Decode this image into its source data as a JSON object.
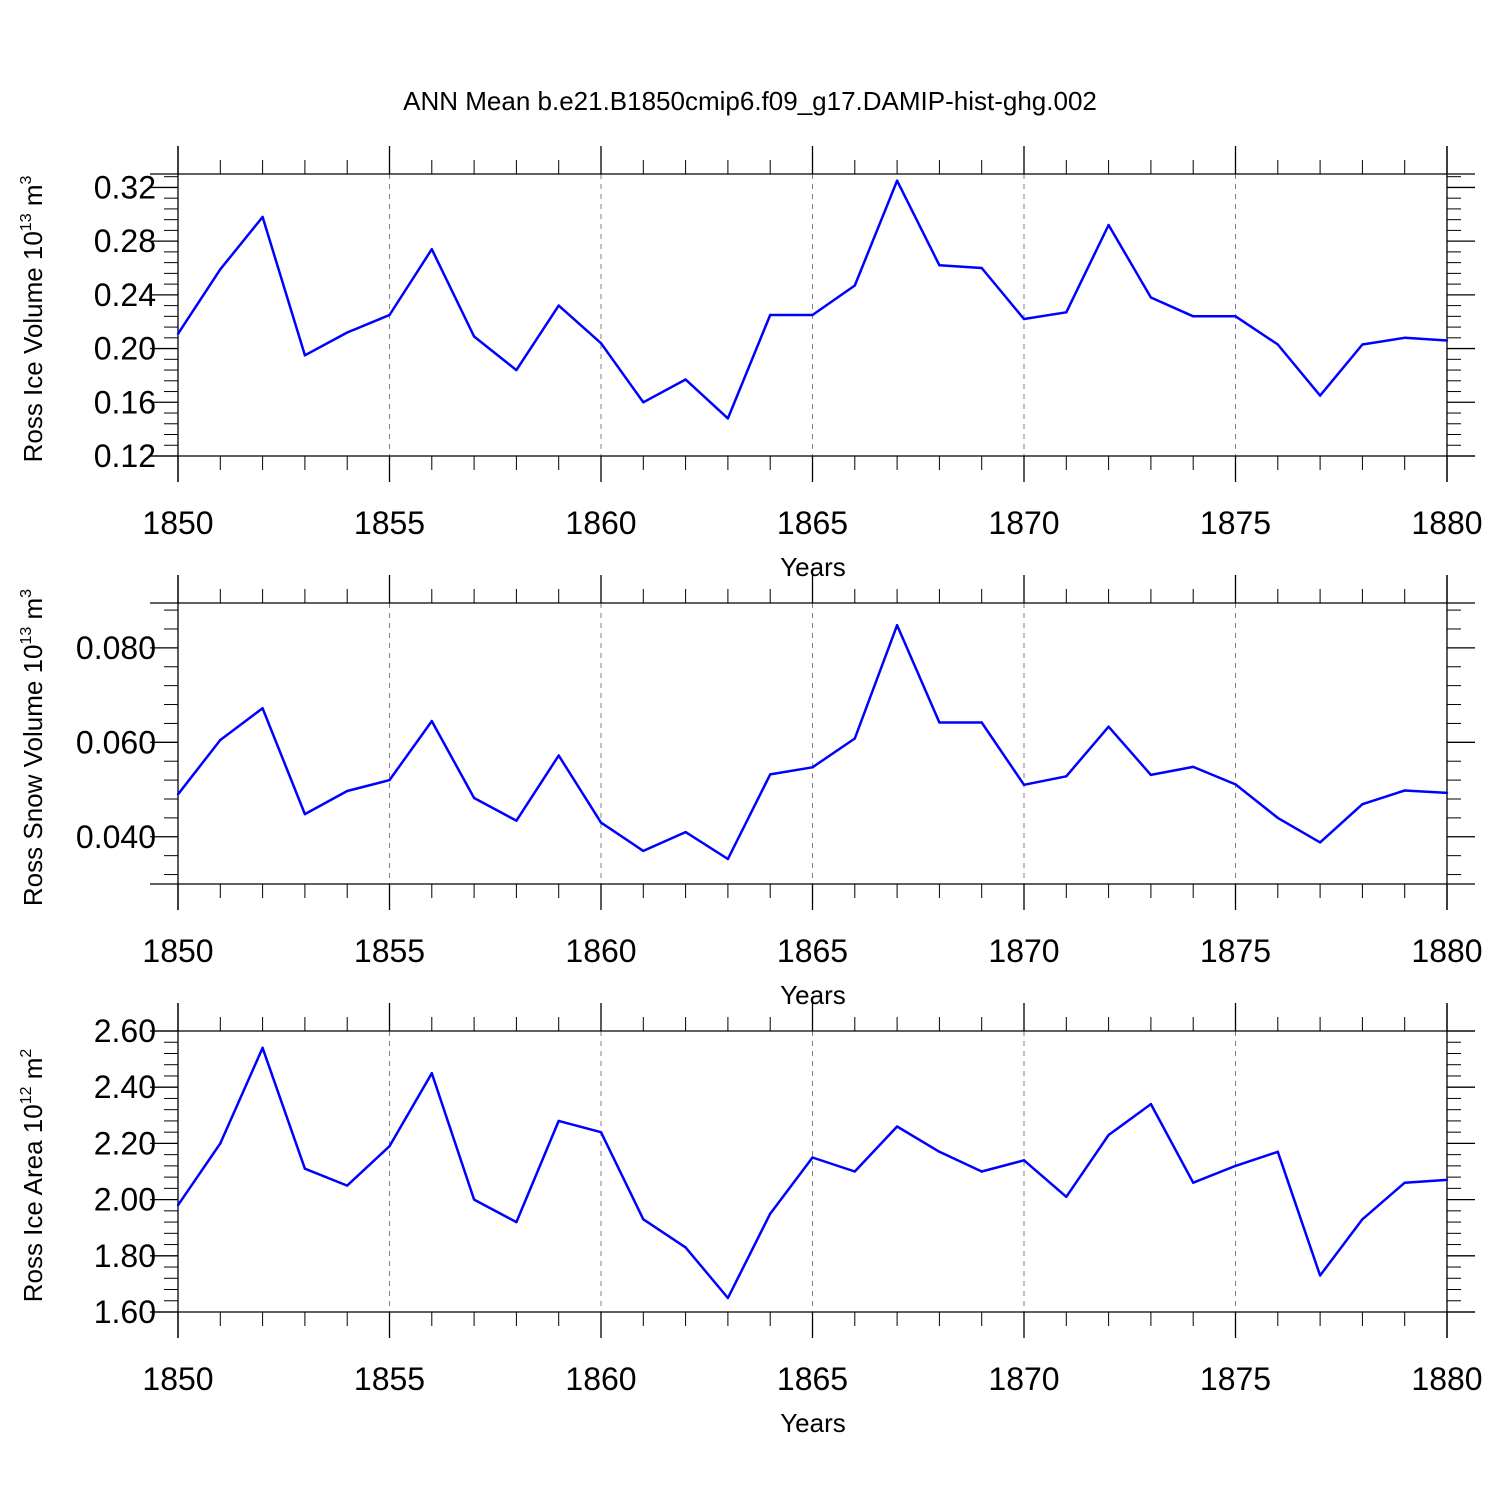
{
  "title": "ANN Mean b.e21.B1850cmip6.f09_g17.DAMIP-hist-ghg.002",
  "colors": {
    "line": "#0000ff",
    "axis": "#000000",
    "grid": "#808080"
  },
  "chart_data": [
    {
      "type": "line",
      "ylabel": {
        "pre": "Ross Ice Volume 10",
        "sup": "13",
        "mid": " m",
        "sup2": "3"
      },
      "xlabel": "Years",
      "xlim": [
        1850,
        1880
      ],
      "ylim": [
        0.12,
        0.33
      ],
      "xticks": [
        1850,
        1855,
        1860,
        1865,
        1870,
        1875,
        1880
      ],
      "yticks": [
        0.12,
        0.16,
        0.2,
        0.24,
        0.28,
        0.32
      ],
      "ytick_labels": [
        "0.12",
        "0.16",
        "0.20",
        "0.24",
        "0.28",
        "0.32"
      ],
      "x": [
        1850,
        1851,
        1852,
        1853,
        1854,
        1855,
        1856,
        1857,
        1858,
        1859,
        1860,
        1861,
        1862,
        1863,
        1864,
        1865,
        1866,
        1867,
        1868,
        1869,
        1870,
        1871,
        1872,
        1873,
        1874,
        1875,
        1876,
        1877,
        1878,
        1879,
        1880
      ],
      "values": [
        0.211,
        0.259,
        0.298,
        0.195,
        0.212,
        0.225,
        0.274,
        0.209,
        0.184,
        0.232,
        0.204,
        0.16,
        0.177,
        0.148,
        0.225,
        0.225,
        0.247,
        0.325,
        0.262,
        0.26,
        0.222,
        0.227,
        0.292,
        0.238,
        0.224,
        0.224,
        0.203,
        0.165,
        0.203,
        0.208,
        0.206
      ],
      "grid": "vertical dashed at major x ticks"
    },
    {
      "type": "line",
      "ylabel": {
        "pre": "Ross Snow Volume 10",
        "sup": "13",
        "mid": " m",
        "sup2": "3"
      },
      "xlabel": "Years",
      "xlim": [
        1850,
        1880
      ],
      "ylim": [
        0.03,
        0.0895
      ],
      "xticks": [
        1850,
        1855,
        1860,
        1865,
        1870,
        1875,
        1880
      ],
      "yticks": [
        0.04,
        0.06,
        0.08
      ],
      "ytick_labels": [
        "0.040",
        "0.060",
        "0.080"
      ],
      "x": [
        1850,
        1851,
        1852,
        1853,
        1854,
        1855,
        1856,
        1857,
        1858,
        1859,
        1860,
        1861,
        1862,
        1863,
        1864,
        1865,
        1866,
        1867,
        1868,
        1869,
        1870,
        1871,
        1872,
        1873,
        1874,
        1875,
        1876,
        1877,
        1878,
        1879,
        1880
      ],
      "values": [
        0.049,
        0.0605,
        0.0672,
        0.0448,
        0.0497,
        0.052,
        0.0645,
        0.0482,
        0.0434,
        0.0572,
        0.043,
        0.037,
        0.041,
        0.0353,
        0.0532,
        0.0547,
        0.0608,
        0.0848,
        0.0642,
        0.0642,
        0.051,
        0.0528,
        0.0633,
        0.0531,
        0.0548,
        0.0511,
        0.044,
        0.0388,
        0.0469,
        0.0498,
        0.0493
      ],
      "grid": "vertical dashed at major x ticks"
    },
    {
      "type": "line",
      "ylabel": {
        "pre": "Ross Ice Area 10",
        "sup": "12",
        "mid": " m",
        "sup2": "2"
      },
      "xlabel": "Years",
      "xlim": [
        1850,
        1880
      ],
      "ylim": [
        1.6,
        2.6
      ],
      "xticks": [
        1850,
        1855,
        1860,
        1865,
        1870,
        1875,
        1880
      ],
      "yticks": [
        1.6,
        1.8,
        2.0,
        2.2,
        2.4,
        2.6
      ],
      "ytick_labels": [
        "1.60",
        "1.80",
        "2.00",
        "2.20",
        "2.40",
        "2.60"
      ],
      "x": [
        1850,
        1851,
        1852,
        1853,
        1854,
        1855,
        1856,
        1857,
        1858,
        1859,
        1860,
        1861,
        1862,
        1863,
        1864,
        1865,
        1866,
        1867,
        1868,
        1869,
        1870,
        1871,
        1872,
        1873,
        1874,
        1875,
        1876,
        1877,
        1878,
        1879,
        1880
      ],
      "values": [
        1.98,
        2.2,
        2.54,
        2.11,
        2.05,
        2.19,
        2.45,
        2.0,
        1.92,
        2.28,
        2.24,
        1.93,
        1.83,
        1.65,
        1.95,
        2.15,
        2.1,
        2.26,
        2.17,
        2.1,
        2.14,
        2.01,
        2.23,
        2.34,
        2.06,
        2.12,
        2.17,
        1.73,
        1.93,
        2.06,
        2.07
      ],
      "grid": "vertical dashed at major x ticks"
    }
  ]
}
